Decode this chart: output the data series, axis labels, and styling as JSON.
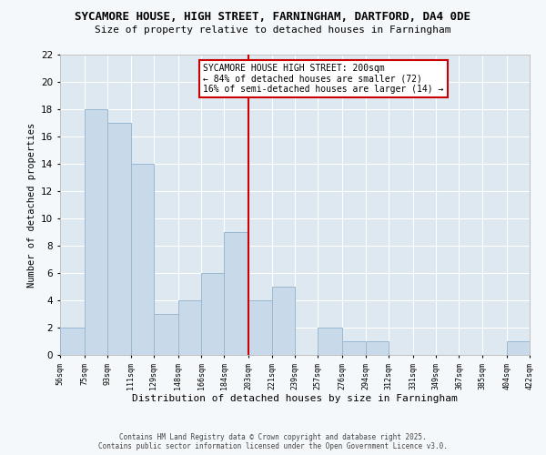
{
  "title": "SYCAMORE HOUSE, HIGH STREET, FARNINGHAM, DARTFORD, DA4 0DE",
  "subtitle": "Size of property relative to detached houses in Farningham",
  "xlabel": "Distribution of detached houses by size in Farningham",
  "ylabel": "Number of detached properties",
  "bar_color": "#c8daea",
  "bar_edge_color": "#9ab8d0",
  "bg_color": "#dde8f0",
  "fig_bg_color": "#f5f8fb",
  "grid_color": "#ffffff",
  "vline_color": "#cc0000",
  "vline_x": 203,
  "annotation_text": "SYCAMORE HOUSE HIGH STREET: 200sqm\n← 84% of detached houses are smaller (72)\n16% of semi-detached houses are larger (14) →",
  "annotation_box_color": "#ffffff",
  "annotation_box_edge": "#cc0000",
  "bin_edges": [
    56,
    75,
    93,
    111,
    129,
    148,
    166,
    184,
    203,
    221,
    239,
    257,
    276,
    294,
    312,
    331,
    349,
    367,
    385,
    404,
    422
  ],
  "bin_counts": [
    2,
    18,
    17,
    14,
    3,
    4,
    6,
    9,
    4,
    5,
    0,
    2,
    1,
    1,
    0,
    0,
    0,
    0,
    0,
    1
  ],
  "tick_labels": [
    "56sqm",
    "75sqm",
    "93sqm",
    "111sqm",
    "129sqm",
    "148sqm",
    "166sqm",
    "184sqm",
    "203sqm",
    "221sqm",
    "239sqm",
    "257sqm",
    "276sqm",
    "294sqm",
    "312sqm",
    "331sqm",
    "349sqm",
    "367sqm",
    "385sqm",
    "404sqm",
    "422sqm"
  ],
  "ylim": [
    0,
    22
  ],
  "yticks": [
    0,
    2,
    4,
    6,
    8,
    10,
    12,
    14,
    16,
    18,
    20,
    22
  ],
  "footer_text": "Contains HM Land Registry data © Crown copyright and database right 2025.\nContains public sector information licensed under the Open Government Licence v3.0.",
  "title_fontsize": 9,
  "subtitle_fontsize": 8,
  "annotation_fontsize": 7
}
